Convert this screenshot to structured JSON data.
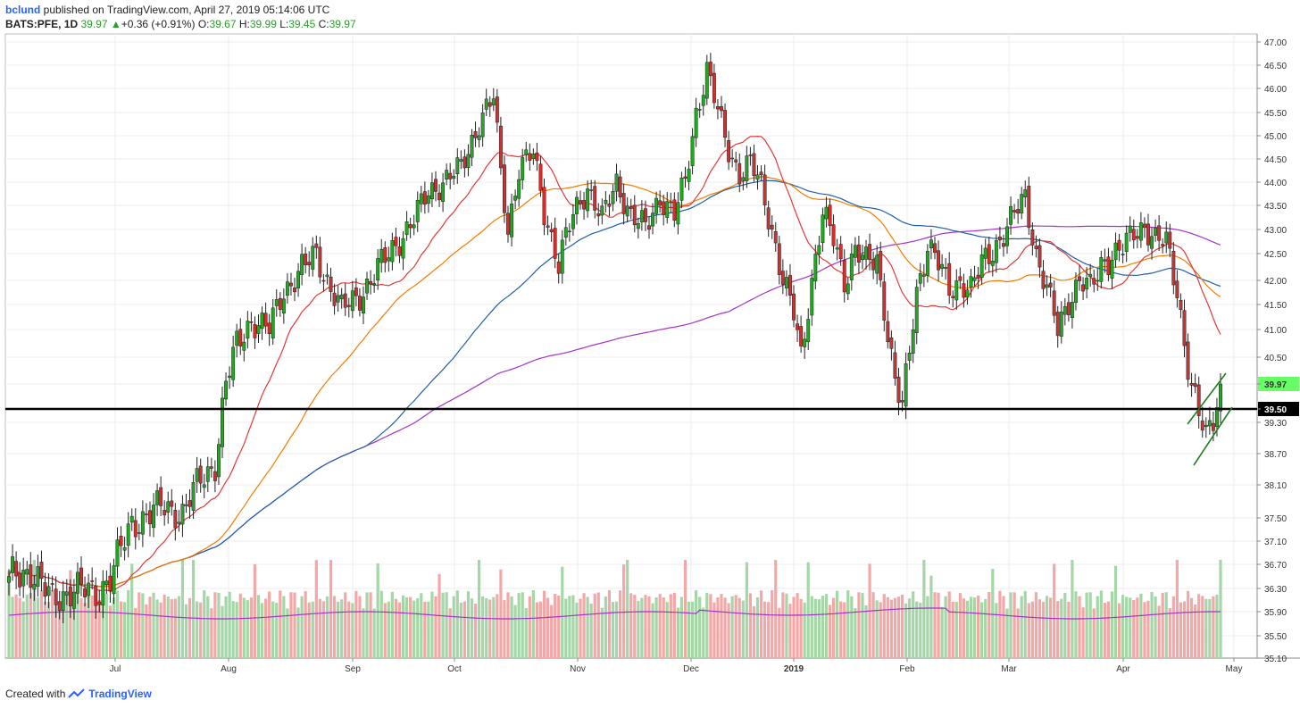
{
  "header": {
    "username": "bclund",
    "published_text": "published on TradingView.com, April 27, 2019 05:14:06 UTC",
    "symbol": "BATS:PFE, 1D",
    "last": "39.97",
    "change": "+0.36 (+0.91%)",
    "o_label": "O:",
    "o": "39.67",
    "h_label": "H:",
    "h": "39.99",
    "l_label": "L:",
    "l": "39.45",
    "c_label": "C:",
    "c": "39.97",
    "up_arrow": "▲"
  },
  "footer": {
    "created_with": "Created with",
    "brand": "TradingView"
  },
  "colors": {
    "up": "#26a626",
    "down": "#d32f2f",
    "vol_up": "#a5d6a7",
    "vol_down": "#f4a7a7",
    "ma20": "#e53935",
    "ma50": "#f57c00",
    "ma100": "#1f5fa8",
    "ma200": "#a333c8",
    "vol_ma": "#a333c8",
    "grid": "#eeeeee",
    "support": "#000000",
    "channel": "#1e7d1e",
    "last_badge": "#66ff66"
  },
  "chart_data": {
    "type": "candlestick",
    "title": "BATS:PFE, 1D",
    "x_ticks": [
      "Jul",
      "Aug",
      "Sep",
      "Oct",
      "Nov",
      "Dec",
      "2019",
      "Feb",
      "Mar",
      "Apr",
      "May"
    ],
    "y_ticks": [
      "47.00",
      "46.50",
      "46.00",
      "45.50",
      "45.00",
      "44.50",
      "44.00",
      "43.50",
      "43.00",
      "42.50",
      "42.00",
      "41.50",
      "41.00",
      "40.50",
      "39.97",
      "39.50",
      "39.30",
      "38.70",
      "38.10",
      "37.50",
      "37.10",
      "36.70",
      "36.30",
      "35.90",
      "35.50",
      "35.10"
    ],
    "price_range": [
      35.1,
      47.0
    ],
    "last_price": "39.97",
    "support_level": "39.50",
    "waypoints": [
      [
        0,
        36.5
      ],
      [
        6,
        36.6
      ],
      [
        12,
        36.1
      ],
      [
        18,
        36.3
      ],
      [
        24,
        36.2
      ],
      [
        28,
        36.5
      ],
      [
        34,
        37.4
      ],
      [
        42,
        37.7
      ],
      [
        48,
        37.6
      ],
      [
        52,
        38.1
      ],
      [
        57,
        38.5
      ],
      [
        60,
        40.0
      ],
      [
        63,
        40.7
      ],
      [
        67,
        41.2
      ],
      [
        72,
        41.0
      ],
      [
        76,
        41.8
      ],
      [
        81,
        42.2
      ],
      [
        85,
        42.5
      ],
      [
        88,
        42.0
      ],
      [
        92,
        41.4
      ],
      [
        97,
        41.7
      ],
      [
        102,
        42.2
      ],
      [
        107,
        42.7
      ],
      [
        112,
        43.2
      ],
      [
        116,
        43.8
      ],
      [
        120,
        44.0
      ],
      [
        125,
        44.3
      ],
      [
        130,
        45.3
      ],
      [
        134,
        45.8
      ],
      [
        136,
        44.2
      ],
      [
        138,
        43.0
      ],
      [
        141,
        44.3
      ],
      [
        145,
        44.6
      ],
      [
        148,
        43.4
      ],
      [
        152,
        42.3
      ],
      [
        156,
        43.3
      ],
      [
        160,
        43.9
      ],
      [
        164,
        43.2
      ],
      [
        168,
        44.0
      ],
      [
        172,
        43.3
      ],
      [
        176,
        43.0
      ],
      [
        180,
        43.7
      ],
      [
        184,
        43.3
      ],
      [
        187,
        44.0
      ],
      [
        190,
        45.5
      ],
      [
        193,
        46.4
      ],
      [
        196,
        45.5
      ],
      [
        199,
        44.7
      ],
      [
        202,
        44.2
      ],
      [
        205,
        44.4
      ],
      [
        208,
        43.9
      ],
      [
        211,
        43.0
      ],
      [
        214,
        42.0
      ],
      [
        217,
        41.3
      ],
      [
        219,
        40.5
      ],
      [
        222,
        42.0
      ],
      [
        225,
        43.3
      ],
      [
        228,
        42.8
      ],
      [
        231,
        42.0
      ],
      [
        234,
        42.6
      ],
      [
        237,
        42.3
      ],
      [
        240,
        42.4
      ],
      [
        243,
        41.0
      ],
      [
        245,
        40.0
      ],
      [
        247,
        39.5
      ],
      [
        249,
        40.6
      ],
      [
        251,
        41.8
      ],
      [
        254,
        42.7
      ],
      [
        257,
        42.3
      ],
      [
        260,
        41.8
      ],
      [
        263,
        42.0
      ],
      [
        266,
        41.8
      ],
      [
        269,
        42.3
      ],
      [
        272,
        42.6
      ],
      [
        275,
        42.9
      ],
      [
        278,
        43.3
      ],
      [
        281,
        43.7
      ],
      [
        284,
        42.5
      ],
      [
        287,
        41.8
      ],
      [
        290,
        41.0
      ],
      [
        293,
        41.6
      ],
      [
        296,
        42.0
      ],
      [
        299,
        41.8
      ],
      [
        302,
        42.3
      ],
      [
        305,
        42.5
      ],
      [
        308,
        42.6
      ],
      [
        311,
        42.9
      ],
      [
        314,
        43.1
      ],
      [
        317,
        42.8
      ],
      [
        320,
        42.7
      ],
      [
        323,
        41.8
      ],
      [
        325,
        40.8
      ],
      [
        327,
        39.9
      ],
      [
        329,
        39.4
      ],
      [
        331,
        39.0
      ],
      [
        333,
        39.4
      ],
      [
        335,
        39.97
      ]
    ]
  }
}
